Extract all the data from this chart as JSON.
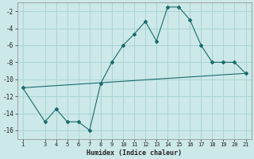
{
  "xlabel": "Humidex (Indice chaleur)",
  "bg_color": "#cce8e8",
  "line_color": "#1a6b6b",
  "grid_color": "#aad4d4",
  "curve_x": [
    1,
    3,
    4,
    5,
    6,
    7,
    8,
    9,
    10,
    11,
    12,
    13,
    14,
    15,
    16,
    17,
    18,
    19,
    20,
    21
  ],
  "curve_y": [
    -11,
    -15,
    -13.5,
    -15,
    -15,
    -16,
    -10.5,
    -8,
    -6,
    -4.7,
    -3.2,
    -5.5,
    -1.5,
    -1.5,
    -3,
    -6,
    -8,
    -8,
    -8,
    -9.3
  ],
  "line_x": [
    1,
    21
  ],
  "line_y": [
    -11,
    -9.3
  ],
  "xlim": [
    0.5,
    21.5
  ],
  "ylim": [
    -17,
    -1
  ],
  "yticks": [
    -16,
    -14,
    -12,
    -10,
    -8,
    -6,
    -4,
    -2
  ],
  "xticks": [
    1,
    3,
    4,
    5,
    6,
    7,
    8,
    9,
    10,
    11,
    12,
    13,
    14,
    15,
    16,
    17,
    18,
    19,
    20,
    21
  ]
}
